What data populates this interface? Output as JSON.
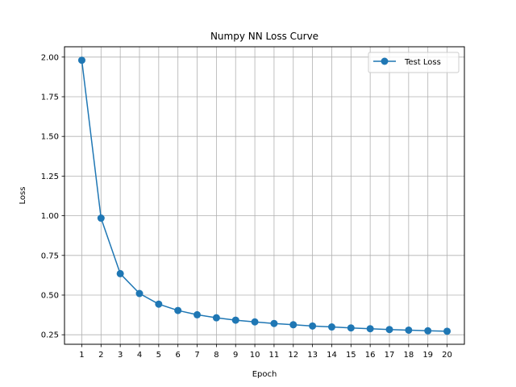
{
  "chart_data": {
    "type": "line",
    "title": "Numpy NN Loss Curve",
    "xlabel": "Epoch",
    "ylabel": "Loss",
    "x": [
      1,
      2,
      3,
      4,
      5,
      6,
      7,
      8,
      9,
      10,
      11,
      12,
      13,
      14,
      15,
      16,
      17,
      18,
      19,
      20
    ],
    "series": [
      {
        "name": "Test Loss",
        "color": "#1f77b4",
        "marker": "circle",
        "values": [
          1.98,
          0.985,
          0.635,
          0.51,
          0.443,
          0.403,
          0.376,
          0.357,
          0.342,
          0.331,
          0.321,
          0.313,
          0.305,
          0.299,
          0.293,
          0.288,
          0.283,
          0.279,
          0.275,
          0.272
        ]
      }
    ],
    "xlim": [
      0.1,
      20.9
    ],
    "ylim": [
      0.19,
      2.065
    ],
    "xticks": [
      "1",
      "2",
      "3",
      "4",
      "5",
      "6",
      "7",
      "8",
      "9",
      "10",
      "11",
      "12",
      "13",
      "14",
      "15",
      "16",
      "17",
      "18",
      "19",
      "20"
    ],
    "yticks": [
      "0.25",
      "0.50",
      "0.75",
      "1.00",
      "1.25",
      "1.50",
      "1.75",
      "2.00"
    ],
    "grid": true,
    "legend_position": "top-right"
  }
}
